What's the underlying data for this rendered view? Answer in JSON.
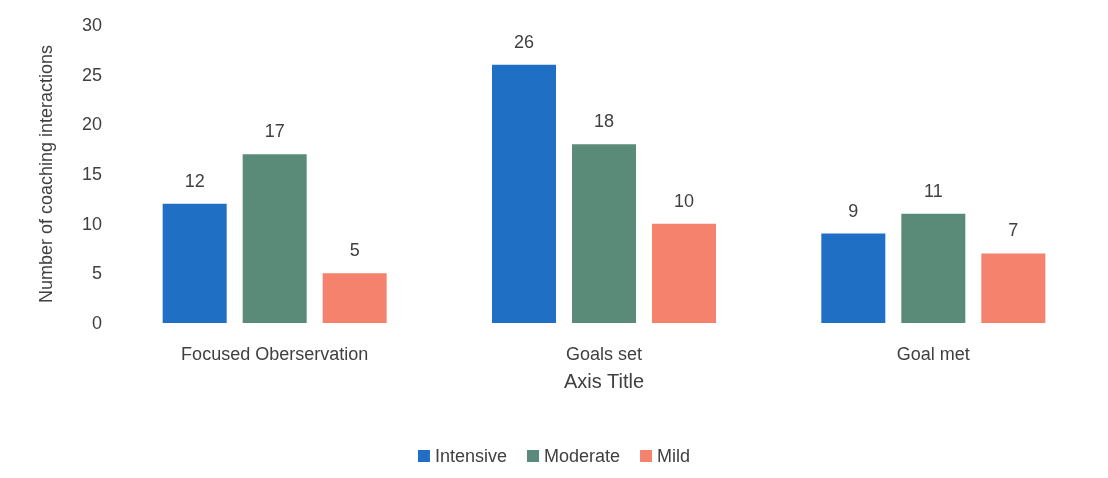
{
  "chart_data": {
    "type": "bar",
    "xlabel": "Axis Title",
    "ylabel": "Number of coaching interactions",
    "categories": [
      "Focused Oberservation",
      "Goals set",
      "Goal met"
    ],
    "series": [
      {
        "name": "Intensive",
        "color": "#1f6fc5",
        "values": [
          12,
          26,
          9
        ]
      },
      {
        "name": "Moderate",
        "color": "#5a8a78",
        "values": [
          17,
          18,
          11
        ]
      },
      {
        "name": "Mild",
        "color": "#f4826d",
        "values": [
          5,
          10,
          7
        ]
      }
    ],
    "ylim": [
      0,
      30
    ],
    "yticks": [
      0,
      5,
      10,
      15,
      20,
      25,
      30
    ],
    "grid": false,
    "legend": "bottom",
    "data_labels": true
  }
}
